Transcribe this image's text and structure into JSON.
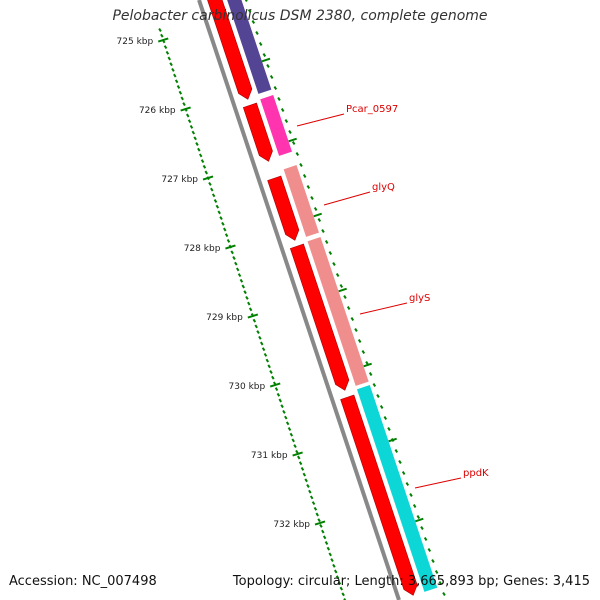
{
  "title": "Pelobacter carbinolicus DSM 2380, complete genome",
  "footer": {
    "accession": "Accession: NC_007498",
    "summary": "Topology: circular; Length: 3,665,893 bp; Genes: 3,415"
  },
  "ruler_ticks": [
    "725 kbp",
    "726 kbp",
    "727 kbp",
    "728 kbp",
    "729 kbp",
    "730 kbp",
    "731 kbp",
    "732 kbp"
  ],
  "gene_labels": [
    "Pcar_0597",
    "glyQ",
    "glyS",
    "ppdK"
  ],
  "colors": {
    "backbone": "#888888",
    "cds": "#ff0000",
    "ruler": "#008000",
    "label": "#dd0000",
    "gene_1": "#4b3b8f",
    "gene_2": "#ff2aaa",
    "gene_3": "#f08888",
    "gene_4": "#00d4d4"
  }
}
